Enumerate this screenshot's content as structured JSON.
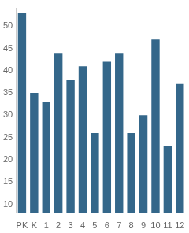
{
  "chart_data": {
    "type": "bar",
    "categories": [
      "PK",
      "K",
      "1",
      "2",
      "3",
      "4",
      "5",
      "6",
      "7",
      "8",
      "9",
      "10",
      "11",
      "12"
    ],
    "values": [
      53,
      35,
      33,
      44,
      38,
      41,
      26,
      42,
      44,
      26,
      30,
      47,
      23,
      37
    ],
    "color": "#34678a",
    "ylim": [
      8,
      54
    ],
    "yticks": [
      10,
      15,
      20,
      25,
      30,
      35,
      40,
      45,
      50
    ],
    "grid": false
  }
}
